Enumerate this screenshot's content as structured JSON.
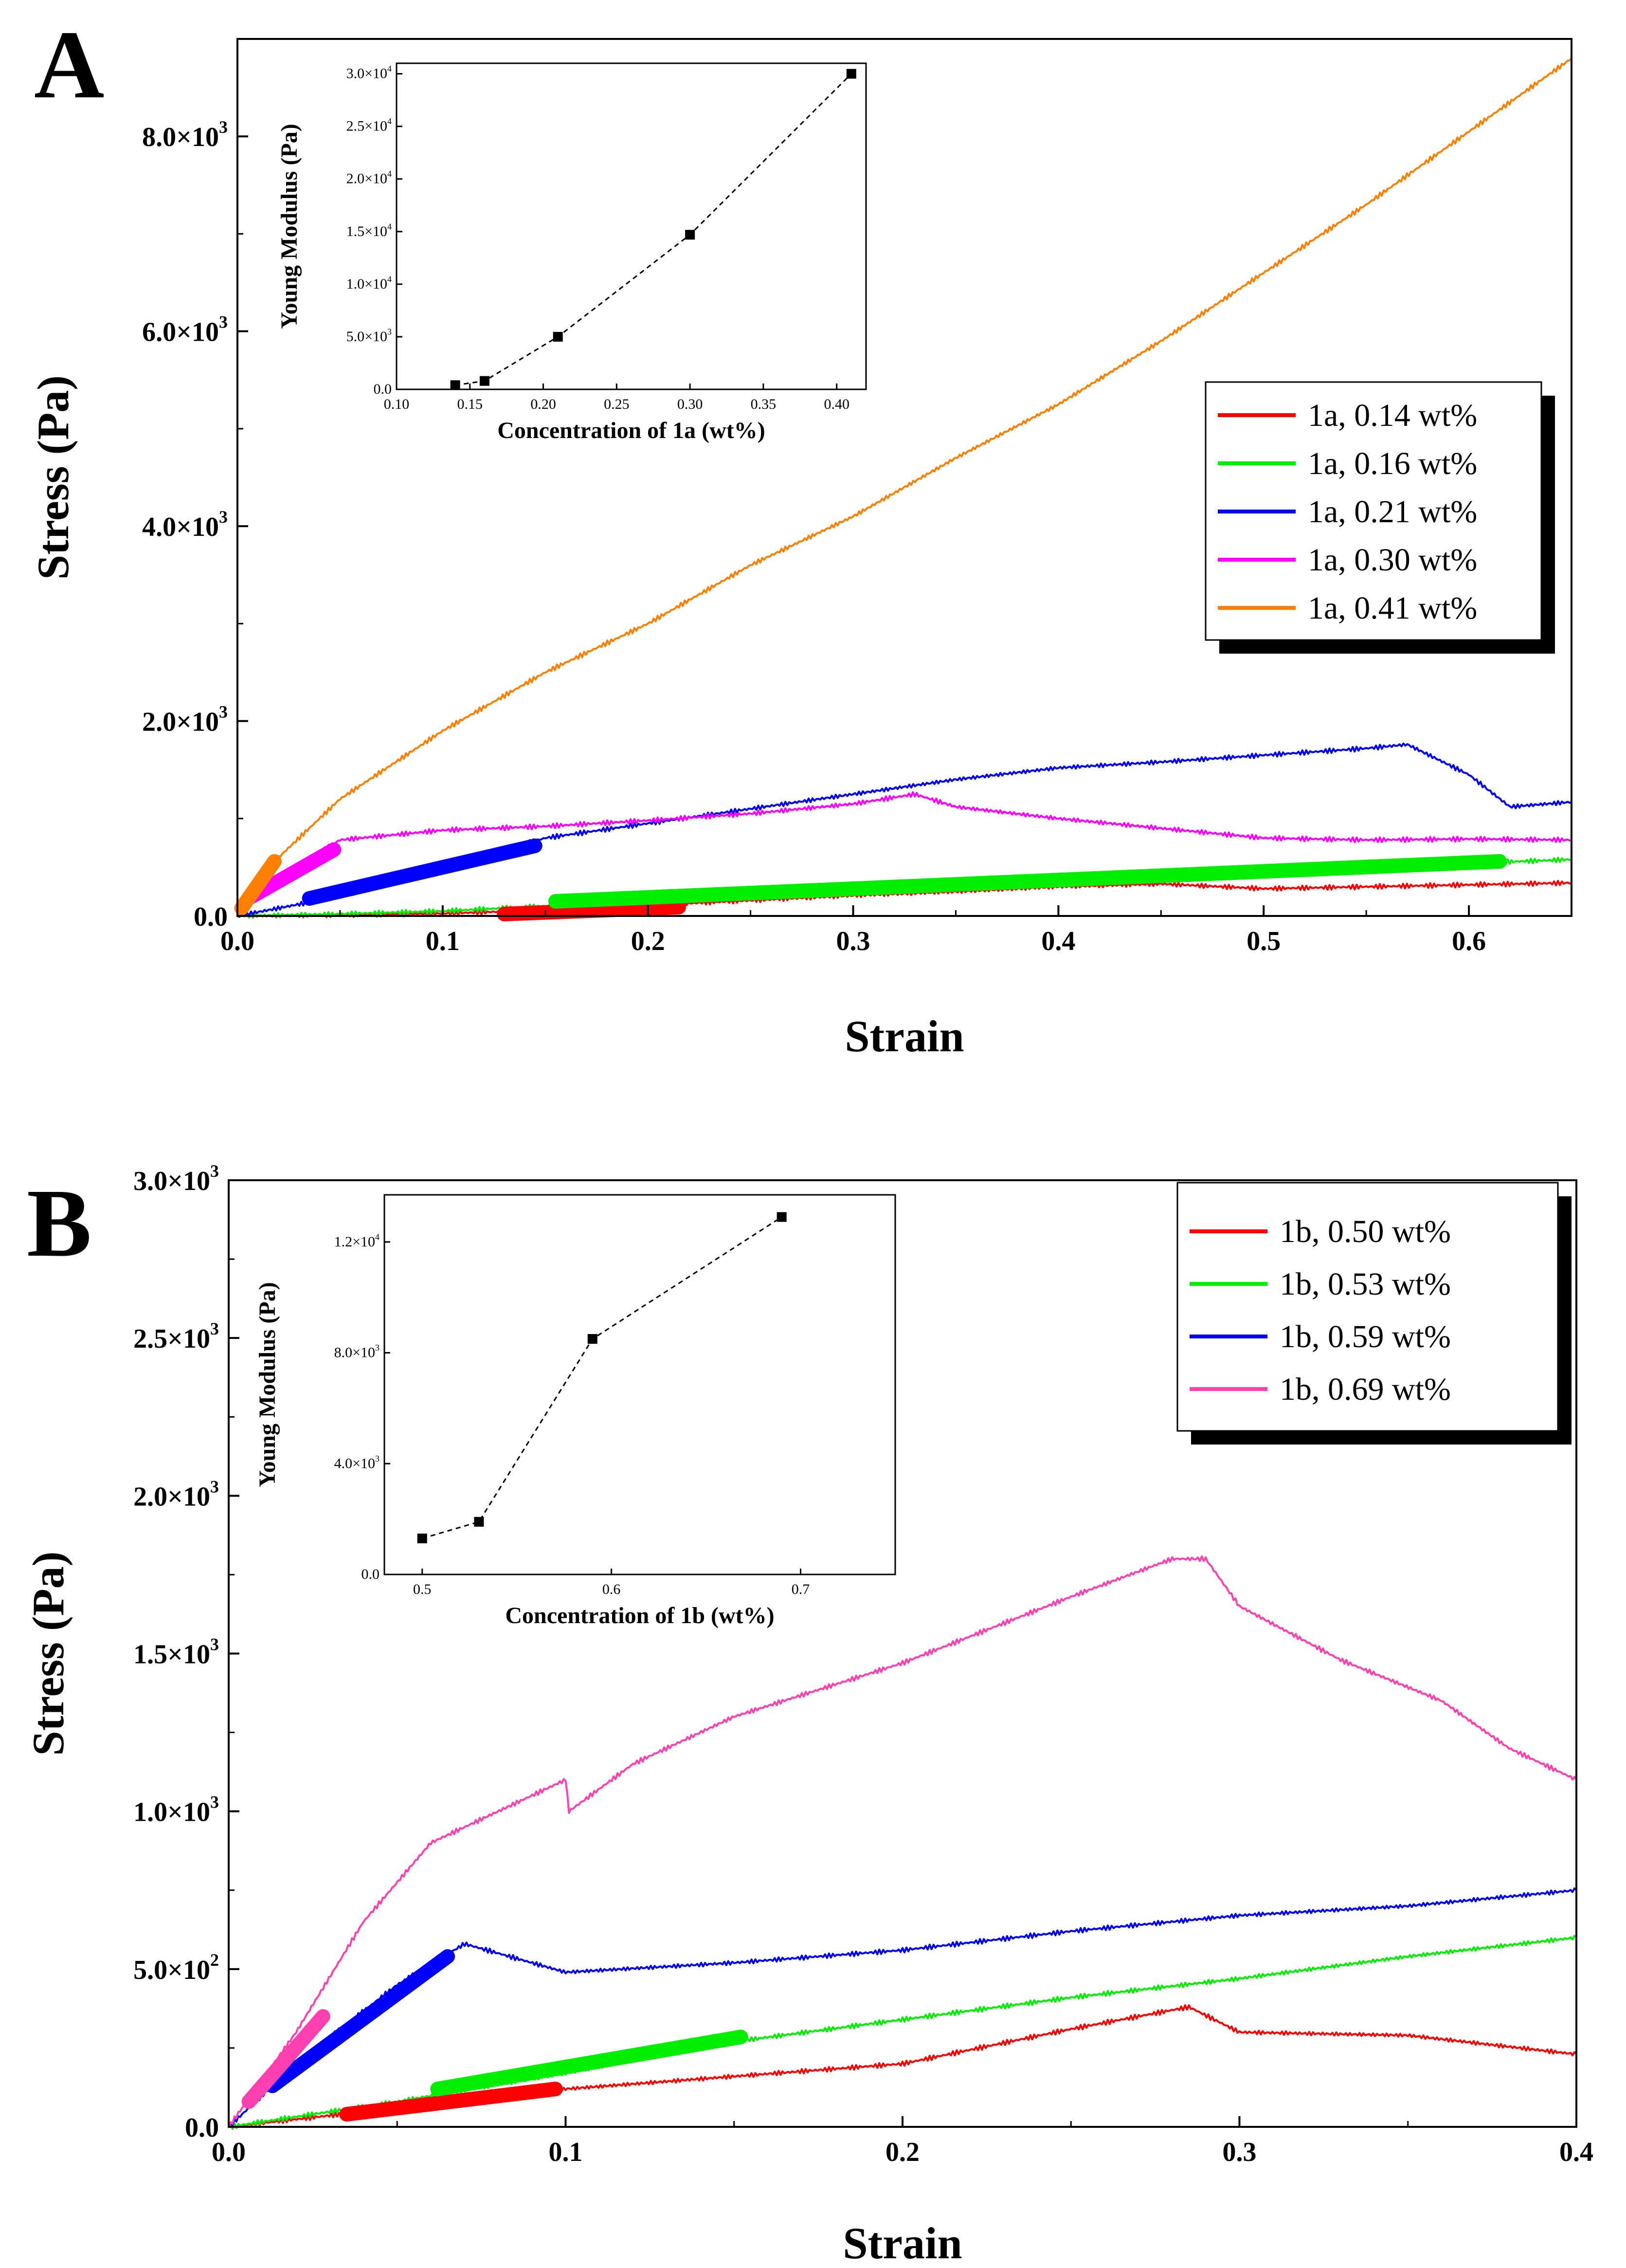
{
  "chart_data": [
    {
      "panel": "A",
      "type": "line",
      "xlabel": "Strain",
      "ylabel": "Stress (Pa)",
      "xlim": [
        0.0,
        0.65
      ],
      "ylim": [
        0,
        9000
      ],
      "xticks": [
        0.0,
        0.1,
        0.2,
        0.3,
        0.4,
        0.5,
        0.6
      ],
      "xtick_labels": [
        "0.0",
        "0.1",
        "0.2",
        "0.3",
        "0.4",
        "0.5",
        "0.6"
      ],
      "yticks": [
        0,
        2000,
        4000,
        6000,
        8000
      ],
      "ytick_labels": [
        {
          "mant": "0.0",
          "exp": ""
        },
        {
          "mant": "2.0×10",
          "exp": "3"
        },
        {
          "mant": "4.0×10",
          "exp": "3"
        },
        {
          "mant": "6.0×10",
          "exp": "3"
        },
        {
          "mant": "8.0×10",
          "exp": "3"
        }
      ],
      "legend_position": "right",
      "series": [
        {
          "name": "1a, 0.14 wt%",
          "color": "#ff0000",
          "x": [
            0,
            0.05,
            0.1,
            0.15,
            0.2,
            0.25,
            0.3,
            0.35,
            0.4,
            0.45,
            0.5,
            0.55,
            0.6,
            0.65
          ],
          "y": [
            0,
            10,
            25,
            60,
            110,
            160,
            210,
            250,
            300,
            330,
            280,
            300,
            320,
            340
          ],
          "fit": {
            "x": [
              0.13,
              0.215
            ],
            "y": [
              20,
              90
            ]
          }
        },
        {
          "name": "1a, 0.16 wt%",
          "color": "#00ee00",
          "x": [
            0,
            0.05,
            0.1,
            0.15,
            0.2,
            0.25,
            0.3,
            0.35,
            0.4,
            0.45,
            0.5,
            0.55,
            0.6,
            0.65
          ],
          "y": [
            0,
            20,
            50,
            100,
            170,
            230,
            280,
            330,
            380,
            420,
            460,
            500,
            540,
            580
          ],
          "fit": {
            "x": [
              0.155,
              0.615
            ],
            "y": [
              150,
              560
            ]
          }
        },
        {
          "name": "1a, 0.21 wt%",
          "color": "#0000ff",
          "x": [
            0,
            0.05,
            0.1,
            0.15,
            0.2,
            0.25,
            0.3,
            0.35,
            0.4,
            0.45,
            0.5,
            0.55,
            0.57,
            0.6,
            0.62,
            0.65
          ],
          "y": [
            0,
            200,
            500,
            800,
            950,
            1100,
            1250,
            1400,
            1520,
            1580,
            1650,
            1720,
            1760,
            1450,
            1120,
            1170
          ],
          "fit": {
            "x": [
              0.035,
              0.145
            ],
            "y": [
              180,
              720
            ]
          }
        },
        {
          "name": "1a, 0.30 wt%",
          "color": "#ff00ff",
          "x": [
            0,
            0.02,
            0.05,
            0.1,
            0.15,
            0.2,
            0.25,
            0.3,
            0.33,
            0.35,
            0.4,
            0.45,
            0.5,
            0.55,
            0.6,
            0.65
          ],
          "y": [
            0,
            400,
            780,
            880,
            920,
            980,
            1050,
            1150,
            1250,
            1120,
            1000,
            900,
            800,
            780,
            790,
            780
          ],
          "fit": {
            "x": [
              0.007,
              0.047
            ],
            "y": [
              200,
              680
            ]
          }
        },
        {
          "name": "1a, 0.41 wt%",
          "color": "#ff8000",
          "x": [
            0,
            0.02,
            0.05,
            0.1,
            0.15,
            0.2,
            0.25,
            0.3,
            0.35,
            0.4,
            0.45,
            0.5,
            0.55,
            0.6,
            0.65
          ],
          "y": [
            0,
            600,
            1200,
            1900,
            2500,
            3000,
            3600,
            4100,
            4700,
            5250,
            5900,
            6600,
            7300,
            8050,
            8800
          ],
          "fit": {
            "x": [
              0.002,
              0.018
            ],
            "y": [
              80,
              560
            ]
          }
        }
      ],
      "inset": {
        "xlabel": "Concentration of 1a (wt%)",
        "ylabel": "Young Modulus (Pa)",
        "xlim": [
          0.1,
          0.42
        ],
        "ylim": [
          0,
          31000
        ],
        "xticks": [
          0.1,
          0.15,
          0.2,
          0.25,
          0.3,
          0.35,
          0.4
        ],
        "xtick_labels": [
          "0.10",
          "0.15",
          "0.20",
          "0.25",
          "0.30",
          "0.35",
          "0.40"
        ],
        "yticks": [
          0,
          5000,
          10000,
          15000,
          20000,
          25000,
          30000
        ],
        "ytick_labels": [
          {
            "mant": "0.0",
            "exp": ""
          },
          {
            "mant": "5.0×10",
            "exp": "3"
          },
          {
            "mant": "1.0×10",
            "exp": "4"
          },
          {
            "mant": "1.5×10",
            "exp": "4"
          },
          {
            "mant": "2.0×10",
            "exp": "4"
          },
          {
            "mant": "2.5×10",
            "exp": "4"
          },
          {
            "mant": "3.0×10",
            "exp": "4"
          }
        ],
        "x": [
          0.14,
          0.16,
          0.21,
          0.3,
          0.41
        ],
        "y": [
          400,
          800,
          5000,
          14700,
          30000
        ]
      }
    },
    {
      "panel": "B",
      "type": "line",
      "xlabel": "Strain",
      "ylabel": "Stress (Pa)",
      "xlim": [
        0.0,
        0.4
      ],
      "ylim": [
        0,
        3000
      ],
      "xticks": [
        0.0,
        0.1,
        0.2,
        0.3,
        0.4
      ],
      "xtick_labels": [
        "0.0",
        "0.1",
        "0.2",
        "0.3",
        "0.4"
      ],
      "yticks": [
        0,
        500,
        1000,
        1500,
        2000,
        2500,
        3000
      ],
      "ytick_labels": [
        {
          "mant": "0.0",
          "exp": ""
        },
        {
          "mant": "5.0×10",
          "exp": "2"
        },
        {
          "mant": "1.0×10",
          "exp": "3"
        },
        {
          "mant": "1.5×10",
          "exp": "3"
        },
        {
          "mant": "2.0×10",
          "exp": "3"
        },
        {
          "mant": "2.5×10",
          "exp": "3"
        },
        {
          "mant": "3.0×10",
          "exp": "3"
        }
      ],
      "legend_position": "top-right",
      "series": [
        {
          "name": "1b, 0.50 wt%",
          "color": "#ff0000",
          "x": [
            0,
            0.05,
            0.1,
            0.15,
            0.2,
            0.25,
            0.285,
            0.3,
            0.35,
            0.4
          ],
          "y": [
            0,
            60,
            120,
            160,
            200,
            310,
            380,
            300,
            290,
            230
          ],
          "fit": {
            "x": [
              0.035,
              0.097
            ],
            "y": [
              40,
              120
            ]
          }
        },
        {
          "name": "1b, 0.53 wt%",
          "color": "#00ee00",
          "x": [
            0,
            0.05,
            0.1,
            0.15,
            0.2,
            0.25,
            0.3,
            0.35,
            0.4
          ],
          "y": [
            0,
            80,
            170,
            270,
            340,
            410,
            470,
            540,
            600
          ],
          "fit": {
            "x": [
              0.062,
              0.152
            ],
            "y": [
              120,
              285
            ]
          }
        },
        {
          "name": "1b, 0.59 wt%",
          "color": "#0000ff",
          "x": [
            0,
            0.02,
            0.05,
            0.07,
            0.1,
            0.15,
            0.2,
            0.25,
            0.3,
            0.35,
            0.4
          ],
          "y": [
            0,
            200,
            450,
            580,
            490,
            520,
            560,
            620,
            670,
            700,
            750
          ],
          "fit": {
            "x": [
              0.013,
              0.065
            ],
            "y": [
              130,
              540
            ]
          }
        },
        {
          "name": "1b, 0.69 wt%",
          "color": "#ff40b0",
          "x": [
            0,
            0.02,
            0.04,
            0.06,
            0.1,
            0.101,
            0.12,
            0.15,
            0.2,
            0.25,
            0.28,
            0.29,
            0.3,
            0.33,
            0.36,
            0.38,
            0.4
          ],
          "y": [
            0,
            300,
            650,
            900,
            1100,
            1000,
            1150,
            1300,
            1470,
            1680,
            1800,
            1800,
            1650,
            1480,
            1350,
            1200,
            1100
          ],
          "fit": {
            "x": [
              0.006,
              0.028
            ],
            "y": [
              80,
              350
            ]
          }
        }
      ],
      "inset": {
        "xlabel": "Concentration of 1b (wt%)",
        "ylabel": "Young Modulus (Pa)",
        "xlim": [
          0.48,
          0.75
        ],
        "ylim": [
          0,
          13700
        ],
        "xticks": [
          0.5,
          0.6,
          0.7
        ],
        "xtick_labels": [
          "0.5",
          "0.6",
          "0.7"
        ],
        "yticks": [
          0,
          4000,
          8000,
          12000
        ],
        "ytick_labels": [
          {
            "mant": "0.0",
            "exp": ""
          },
          {
            "mant": "4.0×10",
            "exp": "3"
          },
          {
            "mant": "8.0×10",
            "exp": "3"
          },
          {
            "mant": "1.2×10",
            "exp": "4"
          }
        ],
        "x": [
          0.5,
          0.53,
          0.59,
          0.69
        ],
        "y": [
          1300,
          1900,
          8500,
          12900
        ]
      }
    }
  ],
  "panels": {
    "a_label": "A",
    "b_label": "B"
  }
}
